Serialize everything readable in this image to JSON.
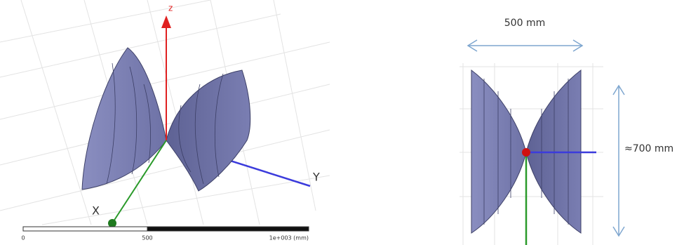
{
  "left_view": {
    "axes": {
      "z": "z",
      "y": "Y",
      "x": "X"
    },
    "scale": {
      "start": "0",
      "mid": "500",
      "end": "1e+003 (mm)"
    }
  },
  "right_view": {
    "width_label": "500 mm",
    "height_label": "≈700 mm"
  }
}
